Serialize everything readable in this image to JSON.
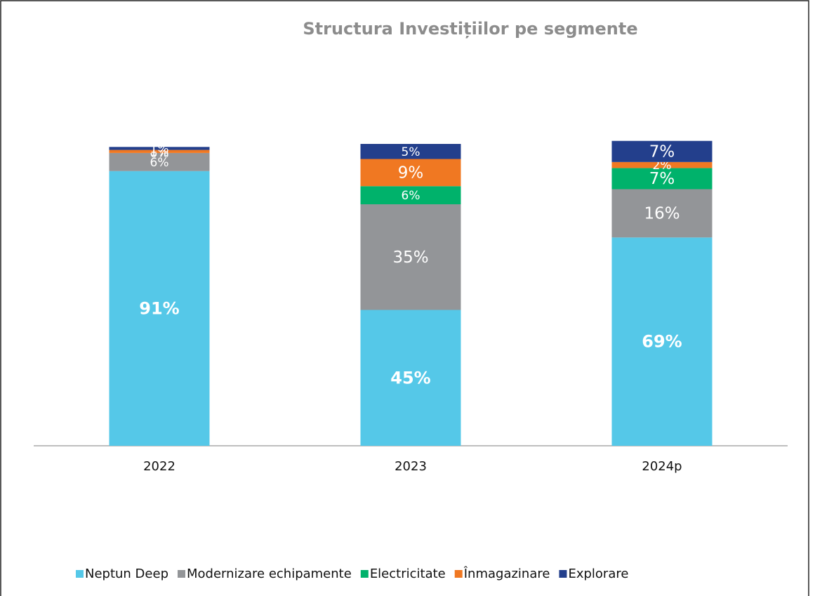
{
  "chart_data": {
    "type": "stacked_bar",
    "title": "Structura Investițiilor pe segmente",
    "categories": [
      "2022",
      "2023",
      "2024p"
    ],
    "ylim": [
      0,
      100
    ],
    "legend": "bottom",
    "series": [
      {
        "name": "Neptun Deep",
        "color": "#55c8e8",
        "values": [
          91,
          45,
          69
        ],
        "value_labels": [
          "91%",
          "45%",
          "69%"
        ]
      },
      {
        "name": "Modernizare echipamente",
        "color": "#939598",
        "values": [
          6,
          35,
          16
        ],
        "value_labels": [
          "6%",
          "35%",
          "16%"
        ]
      },
      {
        "name": "Electricitate",
        "color": "#00b26b",
        "values": [
          0,
          6,
          7
        ],
        "value_labels": [
          "0%",
          "6%",
          "7%"
        ]
      },
      {
        "name": "Înmagazinare",
        "color": "#f07822",
        "values": [
          1,
          9,
          2
        ],
        "value_labels": [
          "1%",
          "9%",
          "2%"
        ]
      },
      {
        "name": "Explorare",
        "color": "#233f8c",
        "values": [
          1,
          5,
          7
        ],
        "value_labels": [
          "1%",
          "5%",
          "7%"
        ]
      }
    ]
  }
}
